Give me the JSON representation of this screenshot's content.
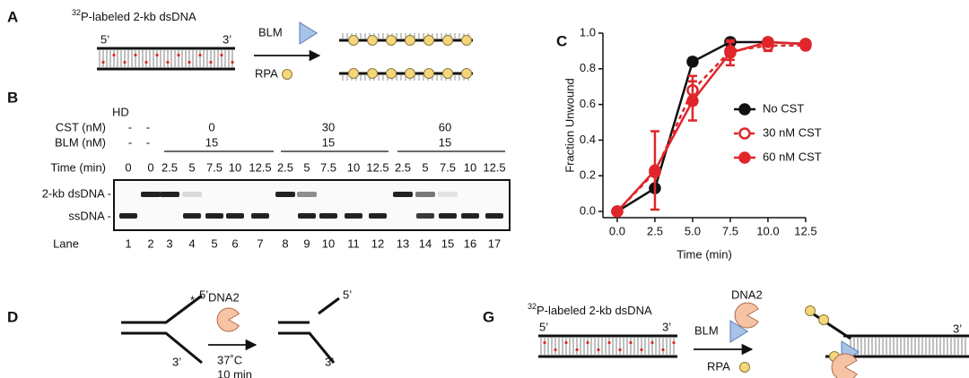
{
  "panel_a": {
    "label": "A",
    "sup": "32",
    "title": "P-labeled 2-kb dsDNA",
    "end5": "5’",
    "end3": "3’",
    "enzyme": "BLM",
    "protein": "RPA"
  },
  "panel_b": {
    "label": "B",
    "hd": "HD",
    "row_labels": [
      "CST (nM)",
      "BLM (nM)",
      "Time (min)"
    ],
    "cst": [
      "-",
      "-",
      "0",
      "30",
      "60"
    ],
    "blm": [
      "-",
      "-",
      "15",
      "15",
      "15"
    ],
    "time": [
      "0",
      "0",
      "2.5",
      "5",
      "7.5",
      "10",
      "12.5",
      "2.5",
      "5",
      "7.5",
      "10",
      "12.5",
      "2.5",
      "5",
      "7.5",
      "10",
      "12.5"
    ],
    "bands": [
      "2-kb dsDNA -",
      "ssDNA -"
    ],
    "lane_label": "Lane",
    "lanes": [
      1,
      2,
      3,
      4,
      5,
      6,
      7,
      8,
      9,
      10,
      11,
      12,
      13,
      14,
      15,
      16,
      17
    ]
  },
  "chart_data": {
    "type": "line",
    "label": "C",
    "xlabel": "Time (min)",
    "ylabel": "Fraction Unwound",
    "x": [
      0,
      2.5,
      5,
      7.5,
      10,
      12.5
    ],
    "series": [
      {
        "name": "No CST",
        "color": "#111111",
        "style": "solid",
        "marker": "filled",
        "values": [
          0,
          0.13,
          0.84,
          0.95,
          0.95,
          0.94
        ],
        "errors": [
          0,
          0,
          0.02,
          0.02,
          0.01,
          0.01
        ]
      },
      {
        "name": "30 nM CST",
        "color": "#e0262b",
        "style": "dashed",
        "marker": "open",
        "values": [
          0,
          0.22,
          0.68,
          0.9,
          0.93,
          0.93
        ],
        "errors": [
          0,
          0,
          0.08,
          0.05,
          0.03,
          0.02
        ]
      },
      {
        "name": "60 nM CST",
        "color": "#e0262b",
        "style": "solid",
        "marker": "filled",
        "values": [
          0,
          0.23,
          0.62,
          0.89,
          0.95,
          0.94
        ],
        "errors": [
          0,
          0.22,
          0.11,
          0.07,
          0.02,
          0.01
        ]
      }
    ],
    "xlim": [
      -0.95,
      12.6
    ],
    "ylim": [
      -0.035,
      1.0
    ],
    "xticks": [
      {
        "value": 0,
        "label": "0.0"
      },
      {
        "value": 2.5,
        "label": "2.5"
      },
      {
        "value": 5,
        "label": "5.0"
      },
      {
        "value": 7.5,
        "label": "7.5"
      },
      {
        "value": 10,
        "label": "10.0"
      },
      {
        "value": 12.5,
        "label": "12.5"
      }
    ],
    "yticks": [
      {
        "value": 0,
        "label": "0.0"
      },
      {
        "value": 0.2,
        "label": "0.2"
      },
      {
        "value": 0.4,
        "label": "0.4"
      },
      {
        "value": 0.6,
        "label": "0.6"
      },
      {
        "value": 0.8,
        "label": "0.8"
      },
      {
        "value": 1,
        "label": "1.0"
      }
    ],
    "legend": "right"
  },
  "panel_d": {
    "label": "D",
    "enzyme": "DNA2",
    "end5": "5’",
    "end3": "3’",
    "temp": "37˚C",
    "duration": "10 min"
  },
  "panel_g": {
    "label": "G",
    "sup": "32",
    "title": "P-labeled 2-kb dsDNA",
    "end5": "5’",
    "end3": "3’",
    "enzyme": "DNA2",
    "helicase": "BLM",
    "protein": "RPA",
    "product_end3": "3’"
  }
}
